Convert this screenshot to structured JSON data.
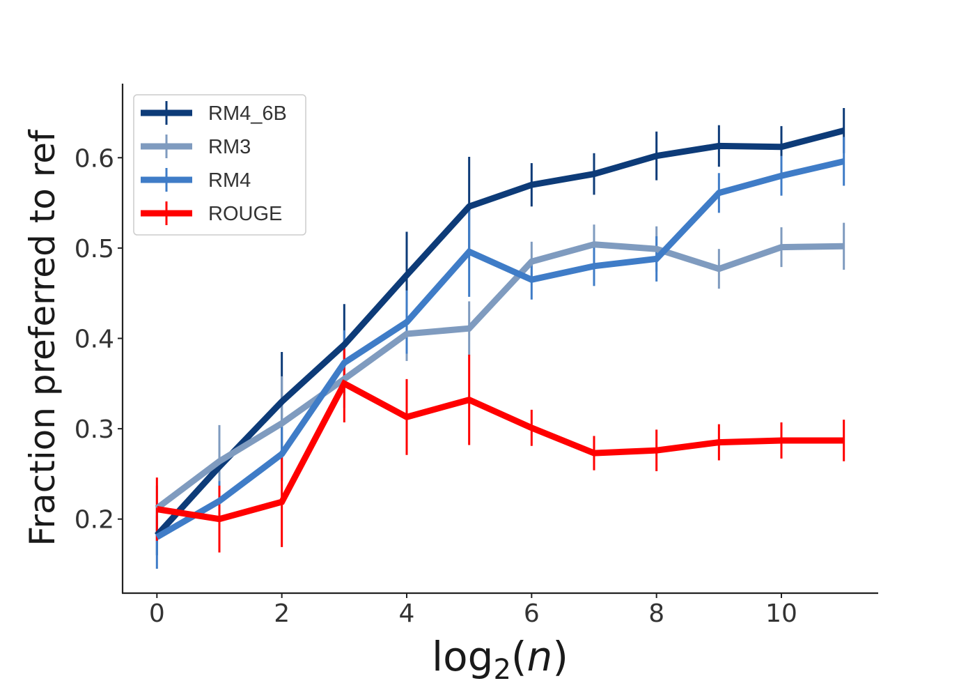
{
  "chart_data": {
    "type": "line",
    "title": "",
    "xlabel": "log2(n)",
    "ylabel": "Fraction preferred to ref",
    "xlim": [
      -0.55,
      11.55
    ],
    "ylim": [
      0.118,
      0.682
    ],
    "xticks": [
      0,
      2,
      4,
      6,
      8,
      10
    ],
    "xtick_labels": [
      "0",
      "2",
      "4",
      "6",
      "8",
      "10"
    ],
    "yticks": [
      0.2,
      0.3,
      0.4,
      0.5,
      0.6
    ],
    "ytick_labels": [
      "0.2",
      "0.3",
      "0.4",
      "0.5",
      "0.6"
    ],
    "grid": false,
    "legend_position": "top-left",
    "x": [
      0,
      1,
      2,
      3,
      4,
      5,
      6,
      7,
      8,
      9,
      10,
      11
    ],
    "series": [
      {
        "name": "RM4_6B",
        "color": "#0d3b78",
        "values": [
          0.182,
          0.258,
          0.33,
          0.393,
          0.47,
          0.546,
          0.57,
          0.582,
          0.602,
          0.613,
          0.612,
          0.63
        ],
        "errors": [
          0.022,
          0.022,
          0.055,
          0.045,
          0.048,
          0.055,
          0.024,
          0.023,
          0.027,
          0.023,
          0.023,
          0.025
        ]
      },
      {
        "name": "RM3",
        "color": "#7f9bbf",
        "values": [
          0.212,
          0.264,
          0.306,
          0.355,
          0.405,
          0.411,
          0.485,
          0.504,
          0.499,
          0.477,
          0.501,
          0.502
        ],
        "errors": [
          0.025,
          0.04,
          0.052,
          0.032,
          0.03,
          0.03,
          0.022,
          0.022,
          0.025,
          0.022,
          0.022,
          0.026
        ]
      },
      {
        "name": "RM4",
        "color": "#3f7cc7",
        "values": [
          0.18,
          0.22,
          0.272,
          0.373,
          0.418,
          0.496,
          0.465,
          0.48,
          0.488,
          0.561,
          0.58,
          0.596
        ],
        "errors": [
          0.035,
          0.022,
          0.03,
          0.036,
          0.035,
          0.05,
          0.022,
          0.022,
          0.025,
          0.022,
          0.022,
          0.027
        ]
      },
      {
        "name": "ROUGE",
        "color": "#ff0000",
        "values": [
          0.211,
          0.2,
          0.219,
          0.35,
          0.313,
          0.332,
          0.301,
          0.273,
          0.276,
          0.285,
          0.287,
          0.287
        ],
        "errors": [
          0.035,
          0.037,
          0.05,
          0.043,
          0.042,
          0.05,
          0.02,
          0.019,
          0.023,
          0.02,
          0.02,
          0.023
        ]
      }
    ]
  }
}
